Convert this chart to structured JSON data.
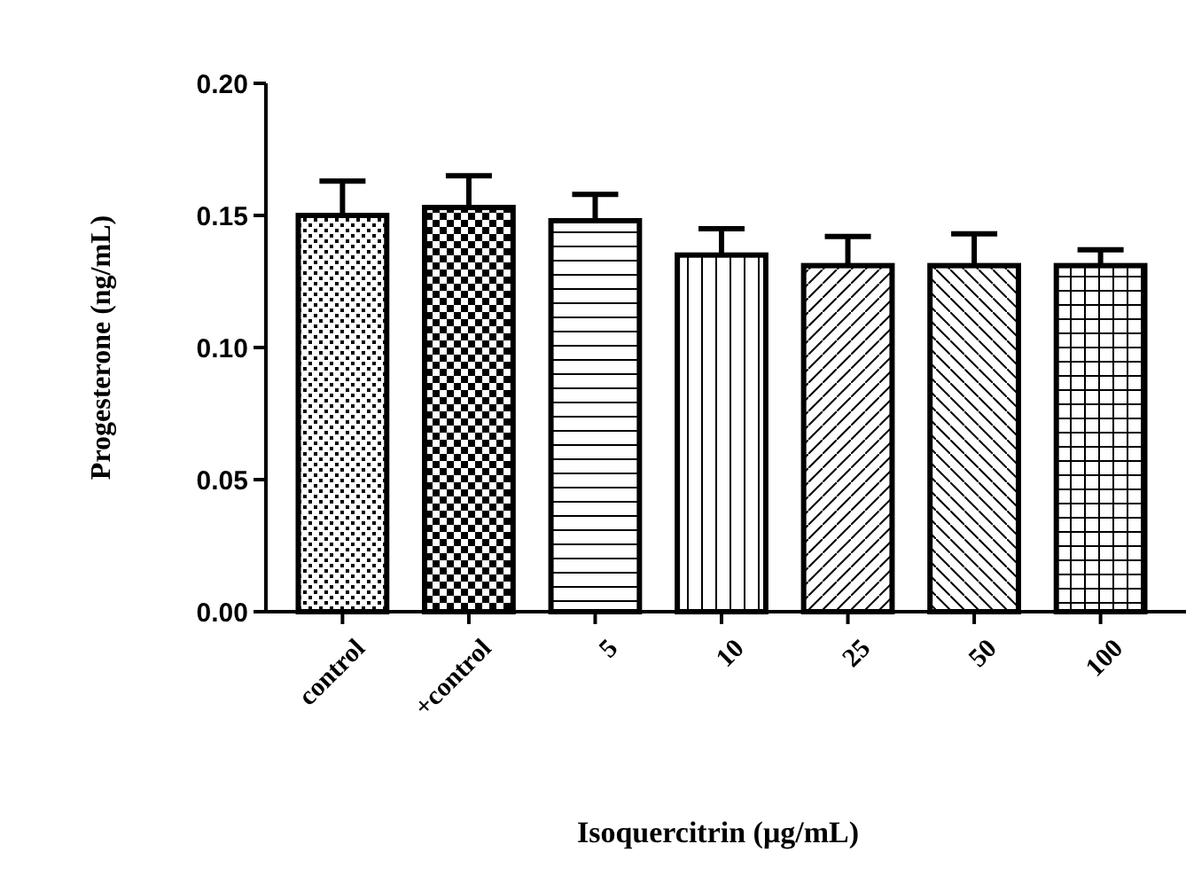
{
  "chart_data": {
    "type": "bar",
    "xlabel": "Isoquercitrin (μg/mL)",
    "ylabel": "Progesterone (ng/mL)",
    "categories": [
      "control",
      "+control",
      "5",
      "10",
      "25",
      "50",
      "100"
    ],
    "values": [
      0.15,
      0.153,
      0.148,
      0.135,
      0.131,
      0.131,
      0.131
    ],
    "errors": [
      0.013,
      0.012,
      0.01,
      0.01,
      0.011,
      0.012,
      0.006
    ],
    "color": "#ffffff",
    "ylim": [
      0,
      0.2
    ],
    "yticks": [
      {
        "value": 0,
        "label": "0.00"
      },
      {
        "value": 0.05,
        "label": "0.05"
      },
      {
        "value": 0.1,
        "label": "0.10"
      },
      {
        "value": 0.15,
        "label": "0.15"
      },
      {
        "value": 0.2,
        "label": "0.20"
      }
    ],
    "grid": false
  }
}
